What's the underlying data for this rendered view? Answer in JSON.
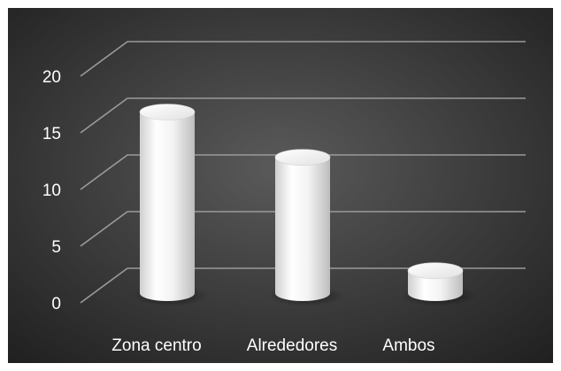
{
  "chart_data": {
    "type": "bar",
    "style": "3d-cylinder",
    "categories": [
      "Zona centro",
      "Alrededores",
      "Ambos"
    ],
    "values": [
      16,
      12,
      2
    ],
    "yticks": [
      0,
      5,
      10,
      15,
      20
    ],
    "ylim": [
      0,
      22
    ],
    "grid": true,
    "legend": "none",
    "colors": {
      "background_center": "#5a5a5a",
      "background_edge": "#1f1f1f",
      "gridline": "#9a9a9a",
      "tick_label": "#ffffff",
      "bar": "#f2f2f2"
    }
  }
}
